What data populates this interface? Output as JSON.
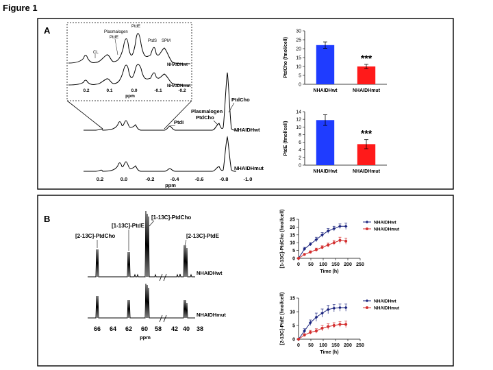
{
  "figure_title": "Figure 1",
  "panelA": {
    "label": "A",
    "inset": {
      "peaks": [
        "CL",
        "Plasmalogen",
        "PtdE",
        "PtdE",
        "PtdS",
        "SPM"
      ],
      "trace_wt": "NHAIDHwt",
      "trace_mut": "NHAIDHmut",
      "ticks": [
        "0.2",
        "0.1",
        "0.0",
        "-0.1",
        "-0.2"
      ],
      "axis_label": "ppm"
    },
    "main_spectrum": {
      "peak_ptdcho": "PtdCho",
      "peak_plasmalogen": "Plasmalogen",
      "peak_plasmalogen2": "PtdCho",
      "peak_ptdi": "PtdI",
      "trace_wt": "NHAIDHwt",
      "trace_mut": "NHAIDHmut",
      "ticks": [
        "0.2",
        "0.0",
        "-0.2",
        "-0.4",
        "-0.6",
        "-0.8",
        "-1.0"
      ],
      "axis_label": "ppm"
    }
  },
  "panelB": {
    "label": "B",
    "spectrum": {
      "peak_labels": {
        "c2_ptdcho": "[2-13C]-PtdCho",
        "c1_ptde": "[1-13C]-PtdE",
        "c1_ptdcho": "[1-13C]-PtdCho",
        "c2_ptde": "[2-13C]-PtdE"
      },
      "trace_wt": "NHAIDHwt",
      "trace_mut": "NHAIDHmut",
      "ticks": [
        "66",
        "64",
        "62",
        "60",
        "58",
        "42",
        "40",
        "38"
      ],
      "axis_label": "ppm"
    }
  },
  "chart_data": [
    {
      "id": "ptdcho_bar",
      "type": "bar",
      "title": "",
      "ylabel": "PtdCho (fmol/cell)",
      "xlabel": "",
      "categories": [
        "NHAIDHwt",
        "NHAIDHmut"
      ],
      "values": [
        22,
        10
      ],
      "errors": [
        1.8,
        1.2
      ],
      "colors": [
        "#1f3cff",
        "#ff1a1a"
      ],
      "ylim": [
        0,
        30
      ],
      "yticks": [
        0,
        5,
        10,
        15,
        20,
        25,
        30
      ],
      "annotation": "***"
    },
    {
      "id": "ptde_bar",
      "type": "bar",
      "title": "",
      "ylabel": "PtdE (fmol/cell)",
      "xlabel": "",
      "categories": [
        "NHAIDHwt",
        "NHAIDHmut"
      ],
      "values": [
        11.8,
        5.5
      ],
      "errors": [
        1.4,
        1.2
      ],
      "colors": [
        "#1f3cff",
        "#ff1a1a"
      ],
      "ylim": [
        0,
        14
      ],
      "yticks": [
        0,
        2,
        4,
        6,
        8,
        10,
        12,
        14
      ],
      "annotation": "***"
    },
    {
      "id": "c1_ptdcho_time",
      "type": "line",
      "title": "",
      "ylabel": "[1-13C]-PtdCho (fmol/cell)",
      "xlabel": "Time (h)",
      "xlim": [
        0,
        250
      ],
      "ylim": [
        0,
        25
      ],
      "xticks": [
        0,
        50,
        100,
        150,
        200,
        250
      ],
      "yticks": [
        0,
        5,
        10,
        15,
        20,
        25
      ],
      "legend_position": "top-right",
      "series": [
        {
          "name": "NHAIDHwt",
          "color": "#1a237e",
          "x": [
            0,
            24,
            48,
            72,
            96,
            120,
            144,
            168,
            192
          ],
          "y": [
            0,
            6,
            9,
            12,
            15,
            17.5,
            19,
            20.5,
            20.5
          ],
          "err": [
            0,
            1,
            1,
            1.5,
            1.5,
            1.5,
            1.5,
            1.5,
            2
          ]
        },
        {
          "name": "NHAIDHmut",
          "color": "#d32f2f",
          "x": [
            0,
            24,
            48,
            72,
            96,
            120,
            144,
            168,
            192
          ],
          "y": [
            0,
            2.5,
            4,
            5.5,
            7,
            8.5,
            10,
            11.5,
            11
          ],
          "err": [
            0,
            0.5,
            0.8,
            1,
            1,
            1.2,
            1.5,
            2,
            2
          ]
        }
      ]
    },
    {
      "id": "c2_ptde_time",
      "type": "line",
      "title": "",
      "ylabel": "[2-13C]-PtdE (fmol/cell)",
      "xlabel": "Time (h)",
      "xlim": [
        0,
        250
      ],
      "ylim": [
        0,
        15
      ],
      "xticks": [
        0,
        50,
        100,
        150,
        200,
        250
      ],
      "yticks": [
        0,
        5,
        10,
        15
      ],
      "legend_position": "top-right",
      "series": [
        {
          "name": "NHAIDHwt",
          "color": "#1a237e",
          "x": [
            0,
            24,
            48,
            72,
            96,
            120,
            144,
            168,
            192
          ],
          "y": [
            0,
            3,
            6,
            8,
            9.5,
            10.8,
            11.3,
            11.5,
            11.5
          ],
          "err": [
            0,
            0.8,
            1,
            1.5,
            1.5,
            1.5,
            1.3,
            1.3,
            1.3
          ]
        },
        {
          "name": "NHAIDHmut",
          "color": "#d32f2f",
          "x": [
            0,
            24,
            48,
            72,
            96,
            120,
            144,
            168,
            192
          ],
          "y": [
            0,
            1.5,
            2.5,
            3,
            4,
            4.6,
            5,
            5.4,
            5.4
          ],
          "err": [
            0,
            0.5,
            0.7,
            0.8,
            1,
            1,
            1,
            1,
            1.2
          ]
        }
      ]
    }
  ]
}
